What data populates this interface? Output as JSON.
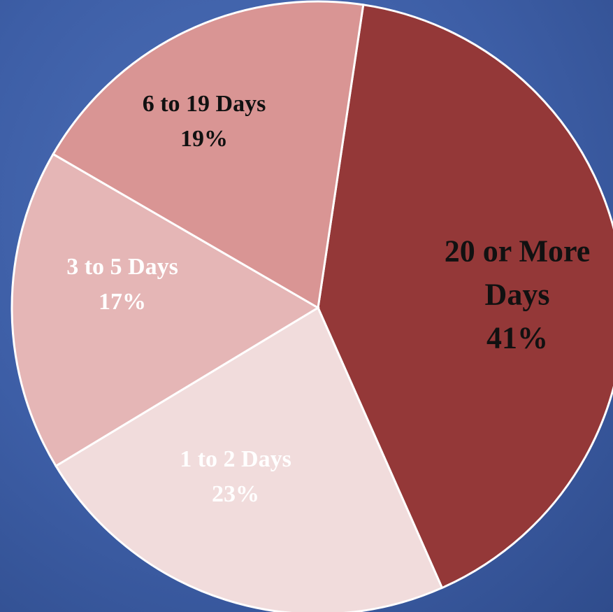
{
  "chart_data": {
    "type": "pie",
    "title": "",
    "slices": [
      {
        "name": "20 or More Days",
        "value": 41,
        "label_lines": [
          "20 or More",
          "Days",
          "41%"
        ],
        "color": "#943838",
        "label_color": "#111111"
      },
      {
        "name": "1 to 2 Days",
        "value": 23,
        "label_lines": [
          "1 to 2 Days",
          "23%"
        ],
        "color": "#f1dcdc",
        "label_color": "#ffffff"
      },
      {
        "name": "3 to 5 Days",
        "value": 17,
        "label_lines": [
          "3 to 5 Days",
          "17%"
        ],
        "color": "#e5b6b6",
        "label_color": "#ffffff"
      },
      {
        "name": "6 to 19 Days",
        "value": 19,
        "label_lines": [
          "6 to 19 Days",
          "19%"
        ],
        "color": "#d99594",
        "label_color": "#111111"
      }
    ]
  }
}
